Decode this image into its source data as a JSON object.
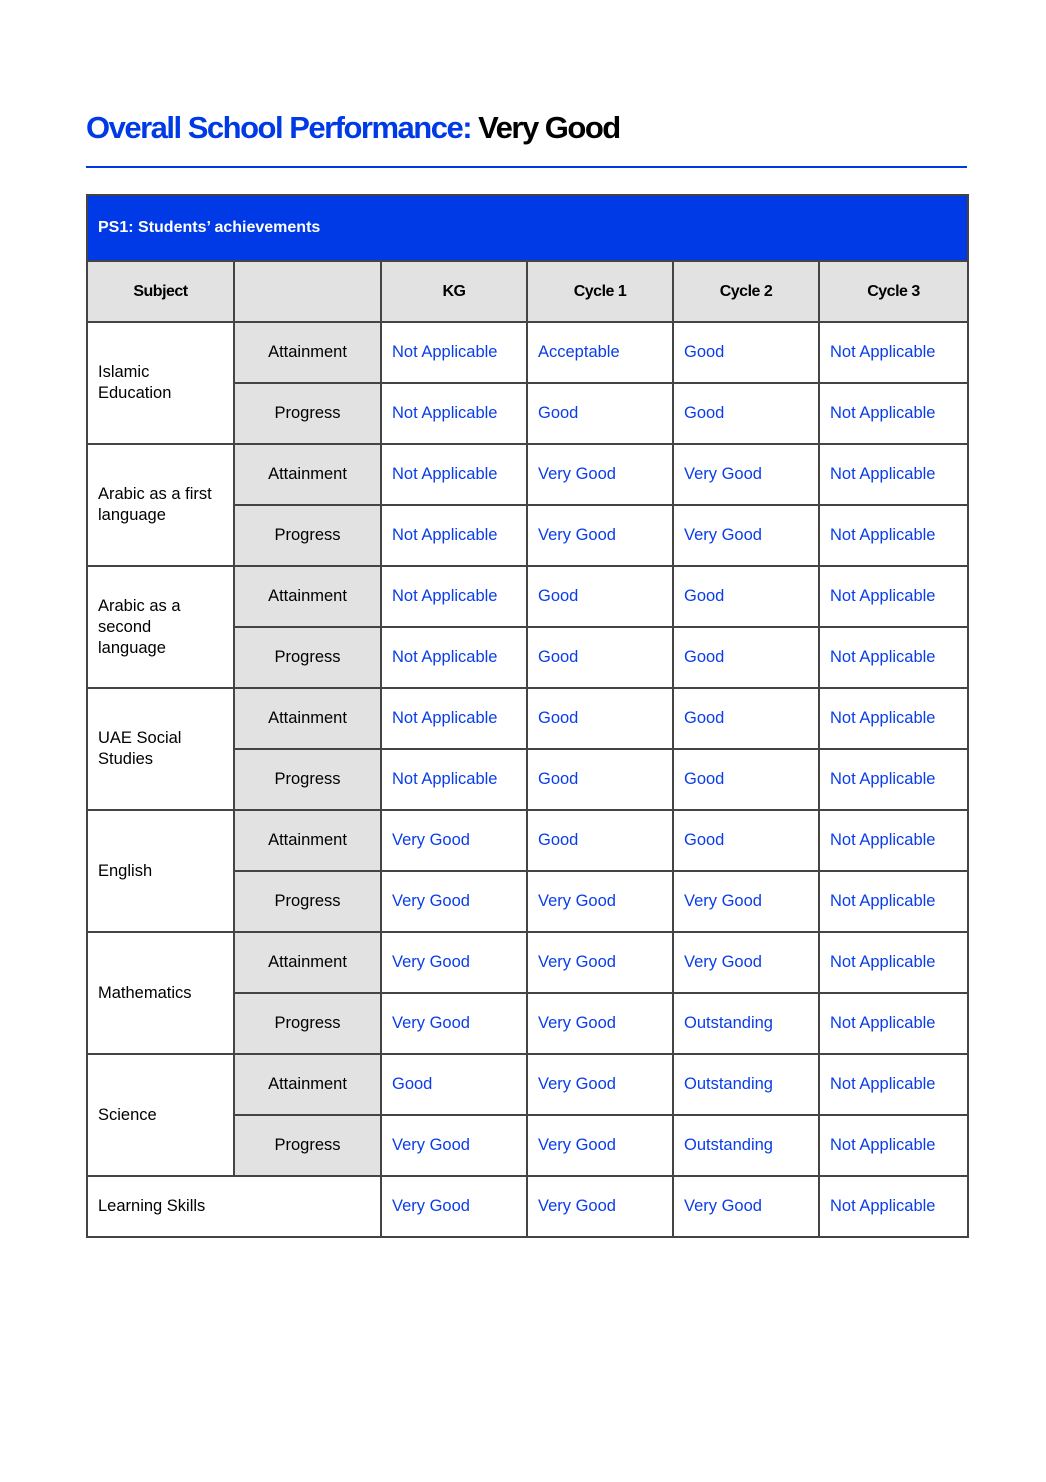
{
  "title": {
    "prefix": "Overall School Performance:",
    "rating": "Very Good"
  },
  "section": "PS1: Students’ achievements",
  "headers": [
    "Subject",
    "",
    "KG",
    "Cycle 1",
    "Cycle 2",
    "Cycle 3"
  ],
  "row_labels": {
    "attainment": "Attainment",
    "progress": "Progress"
  },
  "subjects": [
    {
      "name": "Islamic Education",
      "attainment": [
        "Not Applicable",
        "Acceptable",
        "Good",
        "Not Applicable"
      ],
      "progress": [
        "Not Applicable",
        "Good",
        "Good",
        "Not Applicable"
      ]
    },
    {
      "name": "Arabic as a first language",
      "attainment": [
        "Not Applicable",
        "Very Good",
        "Very Good",
        "Not Applicable"
      ],
      "progress": [
        "Not Applicable",
        "Very Good",
        "Very Good",
        "Not Applicable"
      ]
    },
    {
      "name": "Arabic as a second language",
      "attainment": [
        "Not Applicable",
        "Good",
        "Good",
        "Not Applicable"
      ],
      "progress": [
        "Not Applicable",
        "Good",
        "Good",
        "Not Applicable"
      ]
    },
    {
      "name": "UAE Social Studies",
      "attainment": [
        "Not Applicable",
        "Good",
        "Good",
        "Not Applicable"
      ],
      "progress": [
        "Not Applicable",
        "Good",
        "Good",
        "Not Applicable"
      ]
    },
    {
      "name": "English",
      "attainment": [
        "Very Good",
        "Good",
        "Good",
        "Not Applicable"
      ],
      "progress": [
        "Very Good",
        "Very Good",
        "Very Good",
        "Not Applicable"
      ]
    },
    {
      "name": "Mathematics",
      "attainment": [
        "Very Good",
        "Very Good",
        "Very Good",
        "Not Applicable"
      ],
      "progress": [
        "Very Good",
        "Very Good",
        "Outstanding",
        "Not Applicable"
      ]
    },
    {
      "name": "Science",
      "attainment": [
        "Good",
        "Very Good",
        "Outstanding",
        "Not Applicable"
      ],
      "progress": [
        "Very Good",
        "Very Good",
        "Outstanding",
        "Not Applicable"
      ]
    }
  ],
  "learning_skills": {
    "name": "Learning Skills",
    "values": [
      "Very Good",
      "Very Good",
      "Very Good",
      "Not Applicable"
    ]
  },
  "colors": {
    "accent": "#003ae6",
    "header_bg": "#e2e2e2"
  }
}
